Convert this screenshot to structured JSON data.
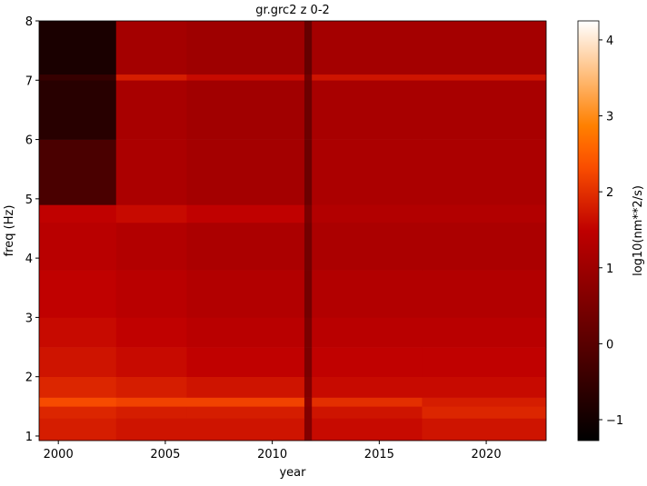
{
  "chart_data": {
    "type": "heatmap",
    "title": "gr.grc2 z 0-2",
    "xlabel": "year",
    "ylabel": "freq (Hz)",
    "colorbar_label": "log10(nm**2/s)",
    "colormap": "gist_heat",
    "x_edges": [
      1999.1,
      2002.7,
      2006,
      2011.5,
      2011.85,
      2017,
      2022.8
    ],
    "y_edges": [
      0.923,
      1.3,
      1.5,
      1.65,
      2.0,
      2.5,
      3.0,
      3.8,
      4.6,
      4.9,
      6.0,
      7.0,
      7.1,
      8
    ],
    "z": [
      [
        1.8,
        1.7,
        1.7,
        0.6,
        1.6,
        1.7
      ],
      [
        1.9,
        1.8,
        1.8,
        0.6,
        1.7,
        1.9
      ],
      [
        2.3,
        2.2,
        2.2,
        0.7,
        2.0,
        1.8
      ],
      [
        1.9,
        1.8,
        1.7,
        0.6,
        1.6,
        1.6
      ],
      [
        1.7,
        1.6,
        1.5,
        0.5,
        1.5,
        1.5
      ],
      [
        1.6,
        1.5,
        1.4,
        0.5,
        1.4,
        1.4
      ],
      [
        1.5,
        1.4,
        1.3,
        0.4,
        1.3,
        1.3
      ],
      [
        1.4,
        1.3,
        1.2,
        0.4,
        1.2,
        1.2
      ],
      [
        1.5,
        1.6,
        1.5,
        0.5,
        1.3,
        1.3
      ],
      [
        -0.2,
        1.2,
        1.1,
        0.3,
        1.2,
        1.2
      ],
      [
        -0.7,
        1.15,
        1.05,
        0.3,
        1.15,
        1.15
      ],
      [
        -0.5,
        1.8,
        1.6,
        0.4,
        1.7,
        1.7
      ],
      [
        -0.9,
        1.1,
        1.0,
        0.2,
        1.1,
        1.1
      ]
    ],
    "xlim": [
      1999.1,
      2022.8
    ],
    "xticks": [
      2000,
      2005,
      2010,
      2015,
      2020
    ],
    "ylim": [
      0.923,
      8
    ],
    "yticks": [
      1,
      2,
      3,
      4,
      5,
      6,
      7,
      8
    ],
    "clim": [
      -1.275,
      4.25
    ],
    "cticks": [
      {
        "value": -1,
        "label": "−1"
      },
      0,
      1,
      2,
      3,
      4
    ]
  }
}
